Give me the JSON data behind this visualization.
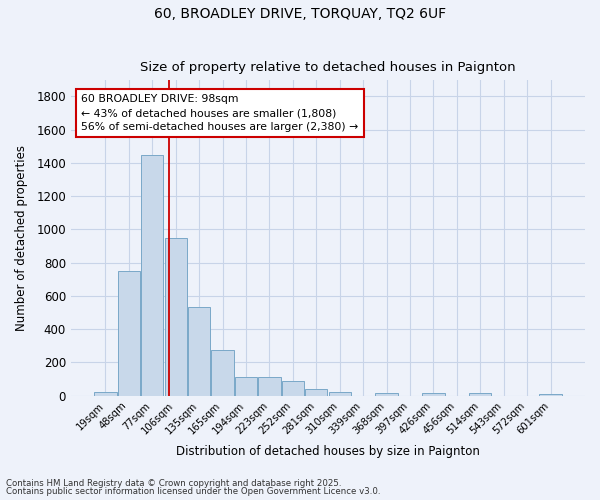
{
  "title1": "60, BROADLEY DRIVE, TORQUAY, TQ2 6UF",
  "title2": "Size of property relative to detached houses in Paignton",
  "xlabel": "Distribution of detached houses by size in Paignton",
  "ylabel": "Number of detached properties",
  "categories": [
    "19sqm",
    "48sqm",
    "77sqm",
    "106sqm",
    "135sqm",
    "165sqm",
    "194sqm",
    "223sqm",
    "252sqm",
    "281sqm",
    "310sqm",
    "339sqm",
    "368sqm",
    "397sqm",
    "426sqm",
    "456sqm",
    "514sqm",
    "543sqm",
    "572sqm",
    "601sqm"
  ],
  "values": [
    22,
    748,
    1445,
    950,
    535,
    275,
    112,
    112,
    90,
    40,
    22,
    0,
    15,
    0,
    15,
    0,
    15,
    0,
    0,
    10
  ],
  "bar_color": "#c8d8ea",
  "bar_edge_color": "#7aa8c8",
  "bar_edge_width": 0.7,
  "grid_color": "#c8d4e8",
  "bg_color": "#eef2fa",
  "property_line_color": "#cc0000",
  "annotation_text": "60 BROADLEY DRIVE: 98sqm\n← 43% of detached houses are smaller (1,808)\n56% of semi-detached houses are larger (2,380) →",
  "annotation_box_color": "#ffffff",
  "annotation_box_edge": "#cc0000",
  "ylim": [
    0,
    1900
  ],
  "yticks": [
    0,
    200,
    400,
    600,
    800,
    1000,
    1200,
    1400,
    1600,
    1800
  ],
  "footnote1": "Contains HM Land Registry data © Crown copyright and database right 2025.",
  "footnote2": "Contains public sector information licensed under the Open Government Licence v3.0."
}
